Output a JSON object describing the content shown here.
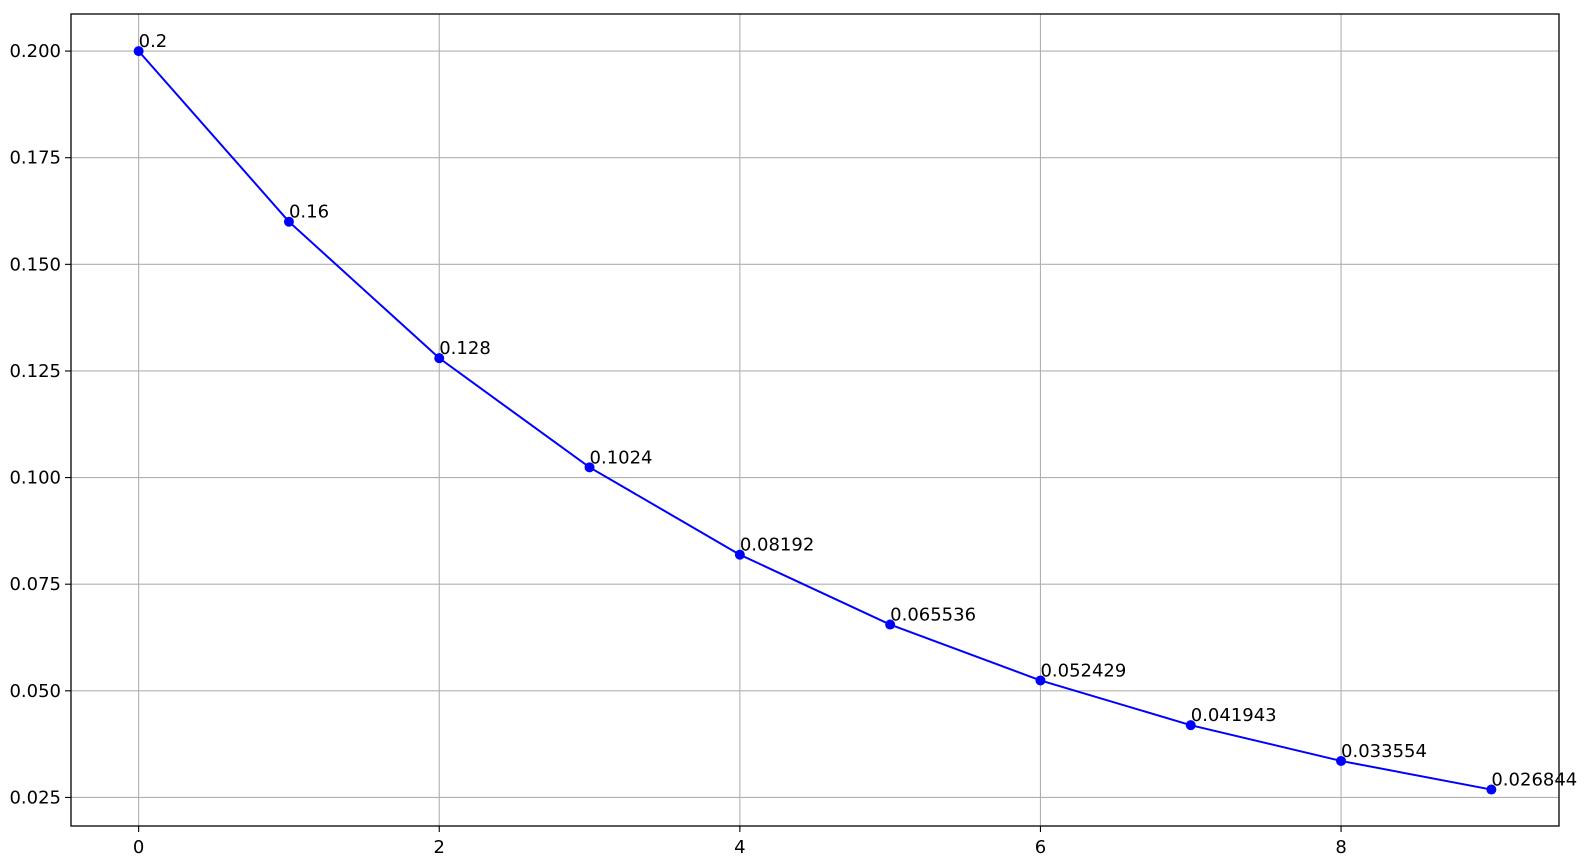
{
  "chart_data": {
    "type": "line",
    "title": "",
    "xlabel": "",
    "ylabel": "",
    "x": [
      0,
      1,
      2,
      3,
      4,
      5,
      6,
      7,
      8,
      9
    ],
    "series": [
      {
        "values": [
          0.2,
          0.16,
          0.128,
          0.1024,
          0.08192,
          0.065536,
          0.052429,
          0.041943,
          0.033554,
          0.026844
        ],
        "labels": [
          "0.2",
          "0.16",
          "0.128",
          "0.1024",
          "0.08192",
          "0.065536",
          "0.052429",
          "0.041943",
          "0.033554",
          "0.026844"
        ],
        "color": "#0000ff",
        "marker": "circle"
      }
    ],
    "xlim": [
      -0.45,
      9.45
    ],
    "ylim": [
      0.0183,
      0.2087
    ],
    "x_ticks": [
      0,
      2,
      4,
      6,
      8
    ],
    "x_tick_labels": [
      "0",
      "2",
      "4",
      "6",
      "8"
    ],
    "y_ticks": [
      0.025,
      0.05,
      0.075,
      0.1,
      0.125,
      0.15,
      0.175,
      0.2
    ],
    "y_tick_labels": [
      "0.025",
      "0.050",
      "0.075",
      "0.100",
      "0.125",
      "0.150",
      "0.175",
      "0.200"
    ],
    "grid": true,
    "legend": "none"
  }
}
